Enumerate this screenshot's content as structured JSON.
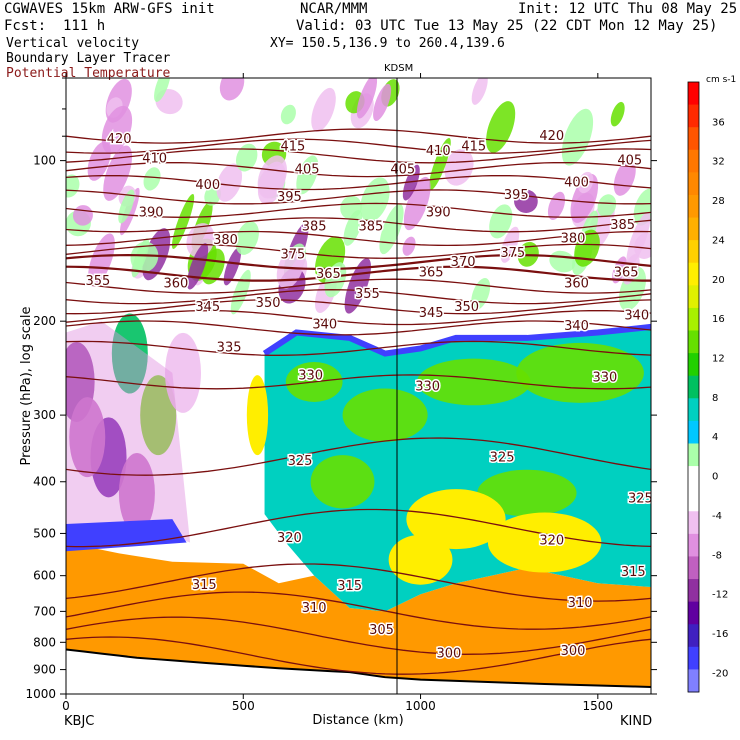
{
  "header": {
    "model": "CGWAVES 15km ARW-GFS init",
    "org": "NCAR/MMM",
    "init": "Init: 12 UTC Thu 08 May 25",
    "fcst": "Fcst:  111 h",
    "valid": "Valid: 03 UTC Tue 13 May 25 (22 CDT Mon 12 May 25)",
    "field1": "Vertical velocity",
    "field2": "Boundary Layer Tracer",
    "field3": "Potential Temperature",
    "xy": "XY= 150.5,136.9 to 260.4,139.6",
    "field3_color": "#8b1a1a"
  },
  "stations": {
    "left": "KBJC",
    "mid": "KDSM",
    "right": "KIND"
  },
  "chart_data": {
    "type": "heatmap",
    "ylabel": "Pressure (hPa), log scale",
    "xlabel": "Distance (km)",
    "xlim": [
      0,
      1650
    ],
    "ylim": [
      1000,
      70
    ],
    "x_ticks": [
      0,
      500,
      1000,
      1500
    ],
    "y_ticks": [
      100,
      200,
      300,
      400,
      500,
      600,
      700,
      800,
      900,
      1000
    ],
    "colorbar": {
      "unit": "cm s-1",
      "ticks": [
        36,
        32,
        28,
        24,
        20,
        16,
        12,
        8,
        4,
        0,
        -4,
        -8,
        -12,
        -16,
        -20
      ],
      "colors": [
        "#ff0000",
        "#ff2a00",
        "#ff5500",
        "#ff7700",
        "#ff8800",
        "#ff9900",
        "#ffb000",
        "#ffd000",
        "#ffee00",
        "#e0f000",
        "#a8f000",
        "#66e000",
        "#22d000",
        "#00c060",
        "#00d0c0",
        "#00c8ff",
        "#aaffaa",
        "#ffffff",
        "#ffffff",
        "#f0c0f0",
        "#e090e0",
        "#c060c0",
        "#9030a0",
        "#6000a0",
        "#4020c0",
        "#4040ff",
        "#8080ff"
      ]
    },
    "isentropes": [
      {
        "theta": 420,
        "p": 90
      },
      {
        "theta": 415,
        "p": 94
      },
      {
        "theta": 410,
        "p": 98
      },
      {
        "theta": 405,
        "p": 104
      },
      {
        "theta": 400,
        "p": 110
      },
      {
        "theta": 395,
        "p": 117
      },
      {
        "theta": 390,
        "p": 124
      },
      {
        "theta": 385,
        "p": 132
      },
      {
        "theta": 380,
        "p": 140
      },
      {
        "theta": 375,
        "p": 148
      },
      {
        "theta": 370,
        "p": 155
      },
      {
        "theta": 365,
        "p": 163
      },
      {
        "theta": 360,
        "p": 172
      },
      {
        "theta": 355,
        "p": 180
      },
      {
        "theta": 350,
        "p": 188
      },
      {
        "theta": 345,
        "p": 197
      },
      {
        "theta": 340,
        "p": 206
      },
      {
        "theta": 335,
        "p": 225
      },
      {
        "theta": 330,
        "p": 260
      },
      {
        "theta": 325,
        "p": 360
      },
      {
        "theta": 320,
        "p": 490
      },
      {
        "theta": 315,
        "p": 620
      },
      {
        "theta": 310,
        "p": 700
      },
      {
        "theta": 305,
        "p": 780
      },
      {
        "theta": 300,
        "p": 850
      }
    ],
    "isentrope_labels": [
      {
        "t": "420",
        "x": 150,
        "p": 91
      },
      {
        "t": "415",
        "x": 640,
        "p": 94
      },
      {
        "t": "410",
        "x": 250,
        "p": 99
      },
      {
        "t": "405",
        "x": 680,
        "p": 104
      },
      {
        "t": "400",
        "x": 400,
        "p": 111
      },
      {
        "t": "395",
        "x": 630,
        "p": 117
      },
      {
        "t": "390",
        "x": 240,
        "p": 125
      },
      {
        "t": "385",
        "x": 700,
        "p": 133
      },
      {
        "t": "380",
        "x": 450,
        "p": 141
      },
      {
        "t": "375",
        "x": 640,
        "p": 150
      },
      {
        "t": "365",
        "x": 740,
        "p": 163
      },
      {
        "t": "360",
        "x": 310,
        "p": 170
      },
      {
        "t": "355",
        "x": 90,
        "p": 168
      },
      {
        "t": "350",
        "x": 570,
        "p": 185
      },
      {
        "t": "345",
        "x": 400,
        "p": 188
      },
      {
        "t": "340",
        "x": 730,
        "p": 203
      },
      {
        "t": "335",
        "x": 460,
        "p": 224
      },
      {
        "t": "330",
        "x": 690,
        "p": 253
      },
      {
        "t": "325",
        "x": 660,
        "p": 366
      },
      {
        "t": "320",
        "x": 630,
        "p": 510
      },
      {
        "t": "315",
        "x": 390,
        "p": 625
      },
      {
        "t": "310",
        "x": 700,
        "p": 690
      },
      {
        "t": "305",
        "x": 890,
        "p": 758
      },
      {
        "t": "300",
        "x": 1080,
        "p": 840
      },
      {
        "t": "420",
        "x": 1370,
        "p": 90
      },
      {
        "t": "415",
        "x": 1150,
        "p": 94
      },
      {
        "t": "410",
        "x": 1050,
        "p": 96
      },
      {
        "t": "405",
        "x": 950,
        "p": 104
      },
      {
        "t": "405",
        "x": 1590,
        "p": 100
      },
      {
        "t": "400",
        "x": 1440,
        "p": 110
      },
      {
        "t": "395",
        "x": 1270,
        "p": 116
      },
      {
        "t": "390",
        "x": 1050,
        "p": 125
      },
      {
        "t": "385",
        "x": 860,
        "p": 133
      },
      {
        "t": "385",
        "x": 1570,
        "p": 132
      },
      {
        "t": "380",
        "x": 1430,
        "p": 140
      },
      {
        "t": "375",
        "x": 1260,
        "p": 149
      },
      {
        "t": "370",
        "x": 1120,
        "p": 155
      },
      {
        "t": "365",
        "x": 1030,
        "p": 162
      },
      {
        "t": "365",
        "x": 1580,
        "p": 162
      },
      {
        "t": "360",
        "x": 1440,
        "p": 170
      },
      {
        "t": "355",
        "x": 850,
        "p": 178
      },
      {
        "t": "350",
        "x": 1130,
        "p": 188
      },
      {
        "t": "345",
        "x": 1030,
        "p": 193
      },
      {
        "t": "340",
        "x": 1440,
        "p": 204
      },
      {
        "t": "340",
        "x": 1610,
        "p": 195
      },
      {
        "t": "330",
        "x": 1020,
        "p": 265
      },
      {
        "t": "330",
        "x": 1520,
        "p": 255
      },
      {
        "t": "325",
        "x": 1230,
        "p": 360
      },
      {
        "t": "325",
        "x": 1620,
        "p": 430
      },
      {
        "t": "320",
        "x": 1370,
        "p": 515
      },
      {
        "t": "315",
        "x": 1600,
        "p": 590
      },
      {
        "t": "315",
        "x": 800,
        "p": 628
      },
      {
        "t": "310",
        "x": 1450,
        "p": 675
      },
      {
        "t": "300",
        "x": 1430,
        "p": 830
      }
    ]
  }
}
